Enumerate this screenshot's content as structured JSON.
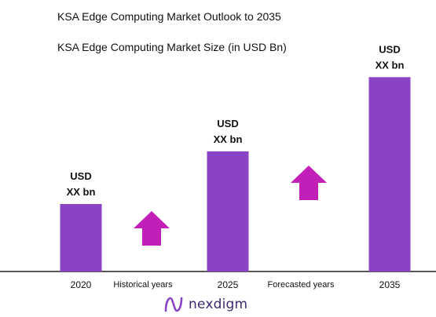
{
  "header": {
    "title": "KSA Edge Computing Market Outlook to 2035",
    "subtitle": "KSA Edge Computing Market Size (in USD Bn)"
  },
  "chart_data": {
    "type": "bar",
    "categories": [
      "2020",
      "2025",
      "2035"
    ],
    "values": [
      1,
      1.78,
      2.88
    ],
    "value_label_line1": "USD",
    "value_label_line2": "XX bn",
    "period_labels": [
      "Historical years",
      "Forecasted years"
    ],
    "title": "KSA Edge Computing Market Size (in USD Bn)",
    "xlabel": "",
    "ylabel": "",
    "ylim": [
      0,
      3
    ],
    "grid": false,
    "legend": "none",
    "colors": {
      "bar": "#8943c4",
      "arrow": "#c21fb8",
      "axis": "#222222",
      "label": "#111111"
    }
  },
  "logo": {
    "text": "nexdigm",
    "icon": "nexdigm-logo-icon",
    "color": "#3d2a6e"
  }
}
